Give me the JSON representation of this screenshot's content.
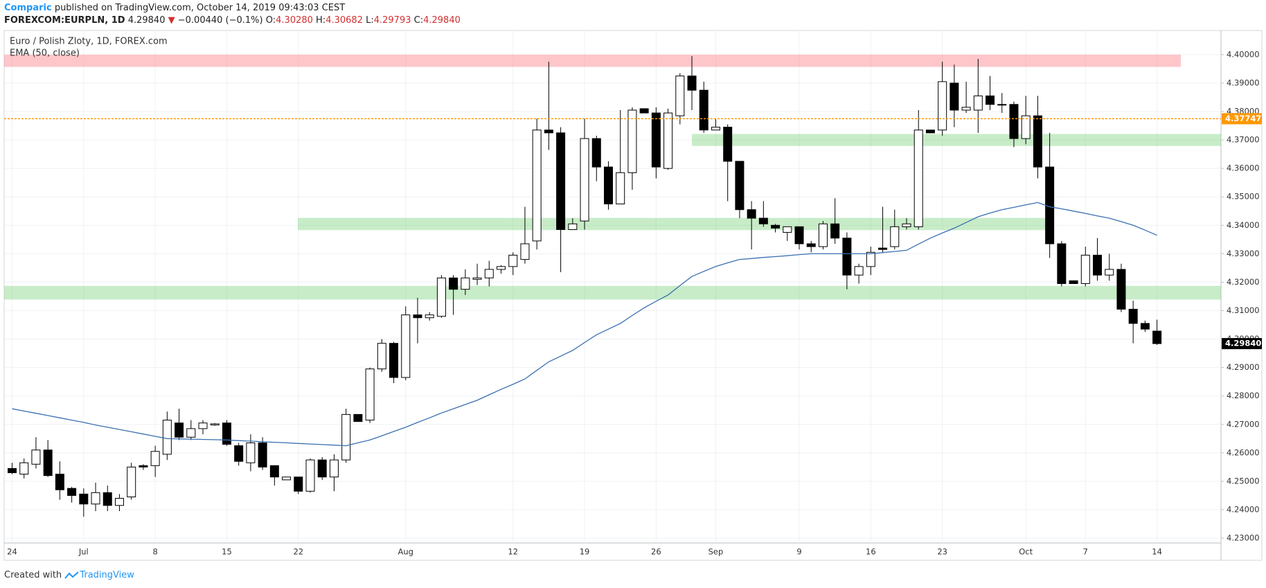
{
  "header": {
    "author": "Comparic",
    "published": "published on TradingView.com, October 14, 2019 09:43:03 CEST",
    "symbol": "FOREXCOM:EURPLN, 1D",
    "price": "4.29840",
    "arrow": "▼",
    "change": "−0.00440 (−0.1%)",
    "ohlc": [
      {
        "label": "O:",
        "value": "4.30280"
      },
      {
        "label": "H:",
        "value": "4.30682"
      },
      {
        "label": "L:",
        "value": "4.29793"
      },
      {
        "label": "C:",
        "value": "4.29840"
      }
    ]
  },
  "footer": {
    "created": "Created with",
    "brand": "TradingView"
  },
  "chart_data": {
    "type": "candlestick",
    "title": "Euro / Polish Zloty, 1D, FOREX.com",
    "categories": [
      "24",
      null,
      null,
      null,
      null,
      null,
      "Jul",
      null,
      null,
      null,
      null,
      null,
      "8",
      null,
      null,
      null,
      null,
      null,
      "15",
      null,
      null,
      null,
      null,
      null,
      "22",
      null,
      null,
      null,
      null,
      null,
      null,
      null,
      null,
      "Aug",
      null,
      null,
      null,
      null,
      null,
      null,
      null,
      null,
      "12",
      null,
      null,
      null,
      null,
      null,
      "19",
      null,
      null,
      null,
      null,
      null,
      "26",
      null,
      null,
      null,
      null,
      "Sep",
      null,
      null,
      null,
      null,
      null,
      null,
      "9",
      null,
      null,
      null,
      null,
      null,
      "16",
      null,
      null,
      null,
      null,
      null,
      "23",
      null,
      null,
      null,
      null,
      null,
      null,
      "Oct",
      null,
      null,
      null,
      null,
      "7",
      null,
      null,
      null,
      null,
      null,
      "14"
    ],
    "open": [
      4.2545,
      4.2525,
      4.256,
      4.261,
      4.2525,
      4.2475,
      4.2455,
      4.242,
      4.246,
      4.2415,
      4.2445,
      4.2555,
      4.2555,
      4.2595,
      4.2705,
      4.2655,
      4.2685,
      4.2698,
      4.2705,
      4.2625,
      4.2565,
      4.2635,
      4.2555,
      4.2505,
      4.2515,
      4.2465,
      4.2575,
      4.2515,
      4.2575,
      4.2735,
      4.2715,
      4.2895,
      4.2985,
      4.2865,
      4.3085,
      4.3075,
      4.308,
      4.3215,
      4.3175,
      4.321,
      4.3215,
      4.3245,
      4.3255,
      4.328,
      4.3345,
      4.3735,
      4.3725,
      4.3385,
      4.3415,
      4.3705,
      4.3605,
      4.3475,
      4.3585,
      4.381,
      4.3795,
      4.36,
      4.3785,
      4.3925,
      4.3875,
      4.3735,
      4.3745,
      4.3625,
      4.3455,
      4.3425,
      4.34,
      4.3375,
      4.3395,
      4.3335,
      4.3325,
      4.3405,
      4.3355,
      4.3225,
      4.3255,
      4.332,
      4.3325,
      4.3395,
      4.3395,
      4.3735,
      4.3735,
      4.39,
      4.3805,
      4.3805,
      4.3855,
      4.3825,
      4.3825,
      4.3705,
      4.3785,
      4.3605,
      4.3335,
      4.3205,
      4.3195,
      4.3295,
      4.3225,
      4.3245,
      4.3105,
      4.3055,
      4.3028
    ],
    "high": [
      4.2565,
      4.258,
      4.2655,
      4.2645,
      4.257,
      4.248,
      4.2475,
      4.2495,
      4.2485,
      4.2455,
      4.2565,
      4.256,
      4.2625,
      4.2745,
      4.2755,
      4.2715,
      4.2715,
      4.2705,
      4.2715,
      4.2635,
      4.2665,
      4.2655,
      4.2555,
      4.2515,
      4.2515,
      4.258,
      4.2585,
      4.2595,
      4.2755,
      4.2735,
      4.29,
      4.3,
      4.299,
      4.3115,
      4.3145,
      4.3095,
      4.3225,
      4.3225,
      4.3245,
      4.3265,
      4.3275,
      4.326,
      4.3305,
      4.3465,
      4.3775,
      4.3975,
      4.3745,
      4.3425,
      4.3775,
      4.3715,
      4.3625,
      4.3805,
      4.3815,
      4.381,
      4.3815,
      4.381,
      4.3935,
      4.3995,
      4.3905,
      4.3775,
      4.3755,
      4.3625,
      4.3485,
      4.3485,
      4.3405,
      4.3395,
      4.3395,
      4.3345,
      4.3415,
      4.3495,
      4.3375,
      4.3265,
      4.3325,
      4.3465,
      4.3455,
      4.3425,
      4.3805,
      4.3735,
      4.3975,
      4.3965,
      4.3905,
      4.3985,
      4.3925,
      4.3865,
      4.3835,
      4.3855,
      4.3855,
      4.3725,
      4.3345,
      4.3205,
      4.3325,
      4.3355,
      4.33,
      4.3265,
      4.3135,
      4.3065,
      4.30682
    ],
    "low": [
      4.2525,
      4.251,
      4.2545,
      4.2515,
      4.2435,
      4.2425,
      4.2375,
      4.2395,
      4.2395,
      4.2395,
      4.2435,
      4.254,
      4.2515,
      4.2575,
      4.2645,
      4.2645,
      4.2665,
      4.2695,
      4.2625,
      4.2555,
      4.2535,
      4.254,
      4.2485,
      4.2505,
      4.2455,
      4.246,
      4.2505,
      4.2465,
      4.2565,
      4.271,
      4.2705,
      4.2885,
      4.2845,
      4.2855,
      4.2985,
      4.3065,
      4.3075,
      4.3085,
      4.3155,
      4.319,
      4.3185,
      4.323,
      4.3225,
      4.3265,
      4.3315,
      4.3665,
      4.3235,
      4.3385,
      4.3385,
      4.3555,
      4.3455,
      4.3475,
      4.3525,
      4.3795,
      4.3565,
      4.3595,
      4.3755,
      4.3805,
      4.3725,
      4.3735,
      4.3485,
      4.3425,
      4.3315,
      4.3395,
      4.3375,
      4.3345,
      4.3315,
      4.3305,
      4.3315,
      4.3335,
      4.3175,
      4.3195,
      4.3225,
      4.3305,
      4.3315,
      4.3385,
      4.3385,
      4.3725,
      4.3715,
      4.3745,
      4.3795,
      4.3725,
      4.3805,
      4.3795,
      4.3675,
      4.3685,
      4.3565,
      4.3285,
      4.3185,
      4.3195,
      4.3185,
      4.3205,
      4.3205,
      4.3095,
      4.2985,
      4.3025,
      4.29793
    ],
    "close": [
      4.253,
      4.2565,
      4.261,
      4.252,
      4.247,
      4.245,
      4.242,
      4.246,
      4.2415,
      4.244,
      4.255,
      4.255,
      4.2605,
      4.2715,
      4.2655,
      4.2685,
      4.2705,
      4.2702,
      4.263,
      4.257,
      4.2635,
      4.255,
      4.2515,
      4.2515,
      4.2465,
      4.2575,
      4.2515,
      4.2575,
      4.2735,
      4.271,
      4.2895,
      4.2985,
      4.2865,
      4.3085,
      4.3075,
      4.3085,
      4.3215,
      4.3175,
      4.3215,
      4.3215,
      4.3245,
      4.3255,
      4.3295,
      4.3335,
      4.3735,
      4.3725,
      4.3385,
      4.3405,
      4.3705,
      4.3605,
      4.3475,
      4.3585,
      4.3805,
      4.3795,
      4.3605,
      4.3795,
      4.3925,
      4.3875,
      4.3735,
      4.3745,
      4.3625,
      4.3455,
      4.3425,
      4.3405,
      4.339,
      4.3395,
      4.3335,
      4.3325,
      4.3405,
      4.3355,
      4.3225,
      4.3255,
      4.3305,
      4.3315,
      4.3395,
      4.3405,
      4.3735,
      4.3725,
      4.3905,
      4.3805,
      4.3815,
      4.3855,
      4.3825,
      4.3825,
      4.3705,
      4.3785,
      4.3605,
      4.3335,
      4.3195,
      4.3195,
      4.3295,
      4.3225,
      4.3245,
      4.3105,
      4.3055,
      4.3035,
      4.2984
    ],
    "up_color": "#ffffff",
    "down_color": "#000000",
    "series": [
      {
        "name": "EMA (50, close)",
        "color": "#3a6fb0",
        "values": [
          4.2755,
          4.2747,
          4.2739,
          4.2731,
          4.2723,
          4.2715,
          4.2707,
          4.2698,
          4.269,
          4.2682,
          4.2674,
          4.2666,
          4.2658,
          4.265,
          4.2649,
          4.2648,
          4.2647,
          4.2646,
          4.2645,
          4.2643,
          4.2641,
          4.2639,
          4.2637,
          4.2635,
          4.2633,
          4.2631,
          4.2629,
          4.2627,
          4.2625,
          4.2635,
          4.2645,
          4.266,
          4.2675,
          4.269,
          4.2707,
          4.2723,
          4.274,
          4.2755,
          4.277,
          4.2785,
          4.2804,
          4.2823,
          4.2841,
          4.286,
          4.289,
          4.292,
          4.294,
          4.296,
          4.2988,
          4.3015,
          4.3035,
          4.3055,
          4.3083,
          4.311,
          4.3133,
          4.3155,
          4.3188,
          4.322,
          4.3238,
          4.3255,
          4.3268,
          4.328,
          4.3283,
          4.3287,
          4.329,
          4.3293,
          4.3297,
          4.33,
          4.33,
          4.33,
          4.33,
          4.33,
          4.33,
          4.3304,
          4.3308,
          4.3312,
          4.3334,
          4.3355,
          4.3373,
          4.339,
          4.341,
          4.343,
          4.3443,
          4.3455,
          4.3463,
          4.3472,
          4.348,
          4.3465,
          4.3458,
          4.345,
          4.3442,
          4.3433,
          4.3425,
          4.3413,
          4.34,
          4.3383,
          4.3365
        ]
      }
    ],
    "zones": [
      {
        "y": [
          4.3957,
          4.4
        ],
        "color": "rgba(255,128,138,0.45)"
      },
      {
        "y": [
          4.3679,
          4.3721
        ],
        "color": "rgba(110,205,110,0.38)"
      },
      {
        "y": [
          4.3383,
          4.3426
        ],
        "color": "rgba(110,205,110,0.38)"
      },
      {
        "y": [
          4.3139,
          4.3187
        ],
        "color": "rgba(110,205,110,0.38)"
      }
    ],
    "price_line": {
      "value": 4.37747,
      "color": "#ff9800"
    },
    "last_price": {
      "value": 4.2984,
      "label": "4.29840"
    },
    "ylim": [
      4.2283,
      4.4085
    ],
    "yticks": [
      {
        "value": 4.23,
        "label": "4.23000"
      },
      {
        "value": 4.24,
        "label": "4.24000"
      },
      {
        "value": 4.25,
        "label": "4.25000"
      },
      {
        "value": 4.26,
        "label": "4.26000"
      },
      {
        "value": 4.27,
        "label": "4.27000"
      },
      {
        "value": 4.28,
        "label": "4.28000"
      },
      {
        "value": 4.29,
        "label": "4.29000"
      },
      {
        "value": 4.3,
        "label": "4.30000"
      },
      {
        "value": 4.31,
        "label": "4.31000"
      },
      {
        "value": 4.32,
        "label": "4.32000"
      },
      {
        "value": 4.33,
        "label": "4.33000"
      },
      {
        "value": 4.34,
        "label": "4.34000"
      },
      {
        "value": 4.35,
        "label": "4.35000"
      },
      {
        "value": 4.36,
        "label": "4.36000"
      },
      {
        "value": 4.37,
        "label": "4.37000"
      },
      {
        "value": 4.38,
        "label": "4.38000"
      },
      {
        "value": 4.39,
        "label": "4.39000"
      },
      {
        "value": 4.4,
        "label": "4.40000"
      }
    ],
    "grid": true
  }
}
